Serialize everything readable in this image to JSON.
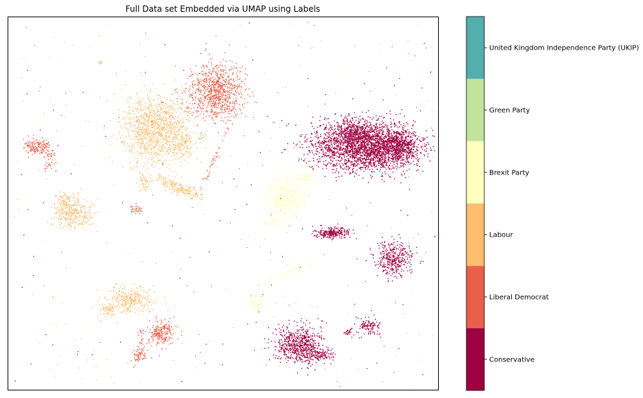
{
  "chart_data": {
    "type": "scatter",
    "title": "Full Data set Embedded via UMAP using Labels",
    "xlabel": "",
    "ylabel": "",
    "axes_ticks_visible": false,
    "grid": false,
    "colorbar": {
      "type": "discrete",
      "position": "right",
      "categories": [
        {
          "label": "Conservative",
          "color": "#9e0142"
        },
        {
          "label": "Liberal Democrat",
          "color": "#e8604a"
        },
        {
          "label": "Labour",
          "color": "#fdbe6f"
        },
        {
          "label": "Brexit Party",
          "color": "#ffffbf"
        },
        {
          "label": "Green Party",
          "color": "#c2e39c"
        },
        {
          "label": "United Kingdom Independence Party (UKIP)",
          "color": "#54aead"
        }
      ]
    }
  }
}
